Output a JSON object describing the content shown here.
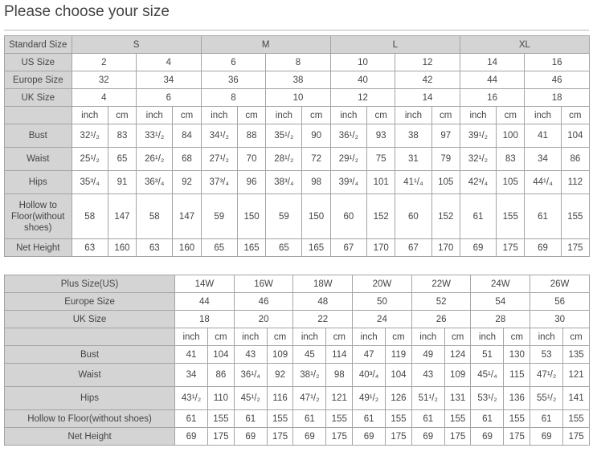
{
  "title": "Please choose your size",
  "colors": {
    "header_bg": "#d4d4d4",
    "border": "#a4a4a4"
  },
  "standard_table": {
    "header_label": "Standard Size",
    "groups": [
      "S",
      "M",
      "L",
      "XL"
    ],
    "rows_sizes": [
      {
        "label": "US Size",
        "values": [
          "2",
          "4",
          "6",
          "8",
          "10",
          "12",
          "14",
          "16"
        ]
      },
      {
        "label": "Europe Size",
        "values": [
          "32",
          "34",
          "36",
          "38",
          "40",
          "42",
          "44",
          "46"
        ]
      },
      {
        "label": "UK Size",
        "values": [
          "4",
          "6",
          "8",
          "10",
          "12",
          "14",
          "16",
          "18"
        ]
      }
    ],
    "unit_labels": [
      "inch",
      "cm"
    ],
    "measurements": [
      {
        "label": "Bust",
        "values": [
          "32¹/₂",
          "83",
          "33¹/₂",
          "84",
          "34¹/₂",
          "88",
          "35¹/₂",
          "90",
          "36¹/₂",
          "93",
          "38",
          "97",
          "39¹/₂",
          "100",
          "41",
          "104"
        ]
      },
      {
        "label": "Waist",
        "values": [
          "25¹/₂",
          "65",
          "26¹/₂",
          "68",
          "27¹/₂",
          "70",
          "28¹/₂",
          "72",
          "29¹/₂",
          "75",
          "31",
          "79",
          "32¹/₂",
          "83",
          "34",
          "86"
        ]
      },
      {
        "label": "Hips",
        "values": [
          "35³/₄",
          "91",
          "36³/₄",
          "92",
          "37³/₄",
          "96",
          "38³/₄",
          "98",
          "39³/₄",
          "101",
          "41¹/₄",
          "105",
          "42³/₄",
          "105",
          "44¹/₄",
          "112"
        ]
      },
      {
        "label": "Hollow to Floor(without shoes)",
        "values": [
          "58",
          "147",
          "58",
          "147",
          "59",
          "150",
          "59",
          "150",
          "60",
          "152",
          "60",
          "152",
          "61",
          "155",
          "61",
          "155"
        ]
      },
      {
        "label": "Net Height",
        "values": [
          "63",
          "160",
          "63",
          "160",
          "65",
          "165",
          "65",
          "165",
          "67",
          "170",
          "67",
          "170",
          "69",
          "175",
          "69",
          "175"
        ]
      }
    ]
  },
  "plus_table": {
    "rows_sizes": [
      {
        "label": "Plus Size(US)",
        "values": [
          "14W",
          "16W",
          "18W",
          "20W",
          "22W",
          "24W",
          "26W"
        ]
      },
      {
        "label": "Europe Size",
        "values": [
          "44",
          "46",
          "48",
          "50",
          "52",
          "54",
          "56"
        ]
      },
      {
        "label": "UK Size",
        "values": [
          "18",
          "20",
          "22",
          "24",
          "26",
          "28",
          "30"
        ]
      }
    ],
    "unit_labels": [
      "inch",
      "cm"
    ],
    "measurements": [
      {
        "label": "Bust",
        "values": [
          "41",
          "104",
          "43",
          "109",
          "45",
          "114",
          "47",
          "119",
          "49",
          "124",
          "51",
          "130",
          "53",
          "135"
        ]
      },
      {
        "label": "Waist",
        "values": [
          "34",
          "86",
          "36¹/₄",
          "92",
          "38¹/₂",
          "98",
          "40³/₄",
          "104",
          "43",
          "109",
          "45¹/₄",
          "115",
          "47¹/₂",
          "121"
        ]
      },
      {
        "label": "Hips",
        "values": [
          "43¹/₂",
          "110",
          "45¹/₂",
          "116",
          "47¹/₂",
          "121",
          "49¹/₂",
          "126",
          "51¹/₂",
          "131",
          "53¹/₂",
          "136",
          "55¹/₂",
          "141"
        ]
      },
      {
        "label": "Hollow to Floor(without shoes)",
        "values": [
          "61",
          "155",
          "61",
          "155",
          "61",
          "155",
          "61",
          "155",
          "61",
          "155",
          "61",
          "155",
          "61",
          "155"
        ]
      },
      {
        "label": "Net Height",
        "values": [
          "69",
          "175",
          "69",
          "175",
          "69",
          "175",
          "69",
          "175",
          "69",
          "175",
          "69",
          "175",
          "69",
          "175"
        ]
      }
    ]
  }
}
